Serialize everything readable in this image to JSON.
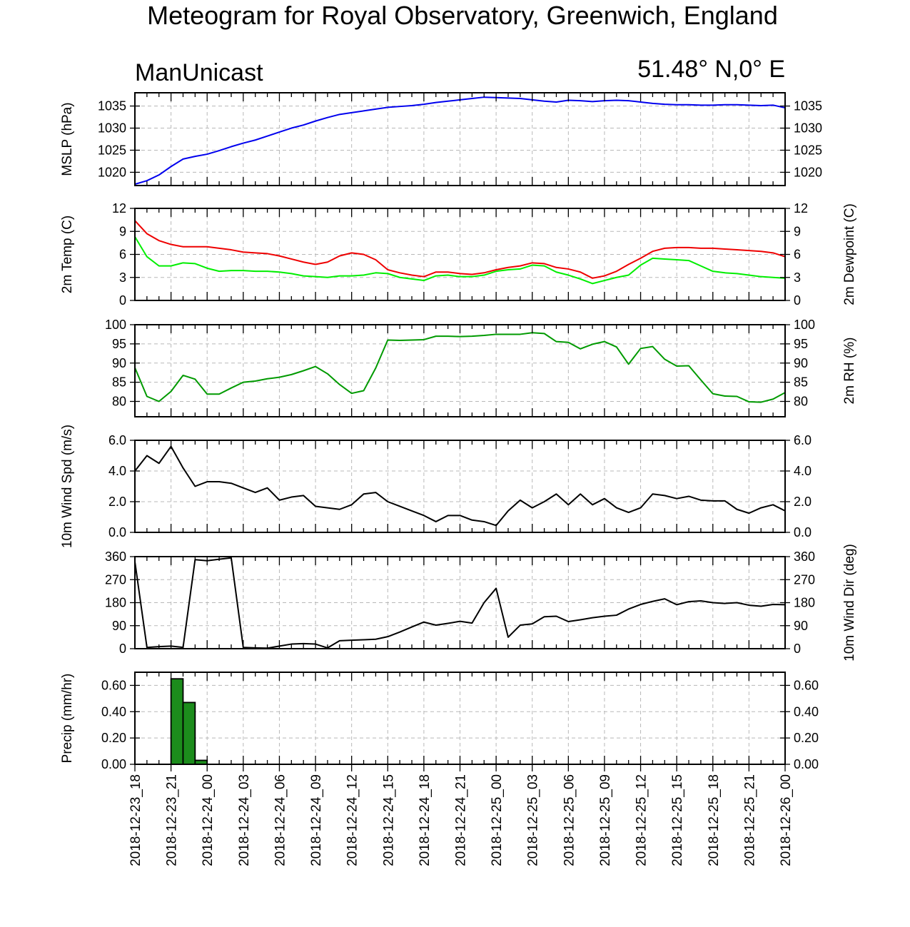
{
  "header": {
    "title": "Meteogram for Royal Observatory, Greenwich, England",
    "model": "ManUnicast",
    "location": "51.48° N,0° E"
  },
  "chart_data": {
    "type": "line",
    "time_axis": {
      "start": "2018-12-23_18",
      "end": "2018-12-26_00",
      "step_hours": 1,
      "tick_labels": [
        "2018-12-23_18",
        "2018-12-23_21",
        "2018-12-24_00",
        "2018-12-24_03",
        "2018-12-24_06",
        "2018-12-24_09",
        "2018-12-24_12",
        "2018-12-24_15",
        "2018-12-24_18",
        "2018-12-24_21",
        "2018-12-25_00",
        "2018-12-25_03",
        "2018-12-25_06",
        "2018-12-25_09",
        "2018-12-25_12",
        "2018-12-25_15",
        "2018-12-25_18",
        "2018-12-25_21",
        "2018-12-26_00"
      ]
    },
    "panels": [
      {
        "id": "mslp",
        "type": "line",
        "ylabel": "MSLP (hPa)",
        "ylabel_right": "",
        "ylim": [
          1017,
          1038
        ],
        "yticks": [
          1020,
          1025,
          1030,
          1035
        ],
        "right_ticklabels": true,
        "series": [
          {
            "color": "#0000ee",
            "values": [
              1017.3,
              1018.1,
              1019.4,
              1021.3,
              1023.0,
              1023.6,
              1024.1,
              1024.9,
              1025.8,
              1026.6,
              1027.3,
              1028.2,
              1029.1,
              1030.0,
              1030.7,
              1031.6,
              1032.4,
              1033.1,
              1033.5,
              1033.9,
              1034.3,
              1034.7,
              1034.9,
              1035.1,
              1035.4,
              1035.8,
              1036.1,
              1036.4,
              1036.7,
              1037.0,
              1036.9,
              1036.8,
              1036.7,
              1036.4,
              1036.1,
              1035.9,
              1036.3,
              1036.2,
              1036.0,
              1036.2,
              1036.3,
              1036.2,
              1035.9,
              1035.6,
              1035.4,
              1035.3,
              1035.3,
              1035.2,
              1035.2,
              1035.3,
              1035.3,
              1035.2,
              1035.1,
              1035.2,
              1034.6
            ]
          }
        ]
      },
      {
        "id": "temp",
        "type": "line",
        "ylabel": "2m Temp (C)",
        "ylabel_right": "2m Dewpoint (C)",
        "ylim": [
          0,
          12
        ],
        "yticks": [
          0,
          3,
          6,
          9,
          12
        ],
        "right_ticklabels": true,
        "series": [
          {
            "color": "#ee0000",
            "values": [
              10.4,
              8.7,
              7.8,
              7.3,
              7.0,
              7.0,
              7.0,
              6.8,
              6.6,
              6.3,
              6.2,
              6.1,
              5.8,
              5.4,
              5.0,
              4.7,
              5.0,
              5.8,
              6.2,
              6.0,
              5.3,
              4.0,
              3.6,
              3.3,
              3.1,
              3.7,
              3.7,
              3.5,
              3.4,
              3.6,
              4.0,
              4.3,
              4.5,
              4.9,
              4.8,
              4.3,
              4.1,
              3.7,
              2.9,
              3.2,
              3.8,
              4.7,
              5.5,
              6.4,
              6.8,
              6.9,
              6.9,
              6.8,
              6.8,
              6.7,
              6.6,
              6.5,
              6.4,
              6.2,
              5.7
            ]
          },
          {
            "color": "#00ee00",
            "values": [
              8.3,
              5.7,
              4.5,
              4.5,
              4.9,
              4.8,
              4.2,
              3.8,
              3.9,
              3.9,
              3.8,
              3.8,
              3.7,
              3.5,
              3.2,
              3.1,
              3.0,
              3.2,
              3.2,
              3.3,
              3.6,
              3.5,
              3.0,
              2.8,
              2.6,
              3.2,
              3.3,
              3.1,
              3.1,
              3.3,
              3.8,
              4.0,
              4.1,
              4.6,
              4.5,
              3.7,
              3.3,
              2.8,
              2.2,
              2.6,
              3.0,
              3.3,
              4.6,
              5.5,
              5.4,
              5.3,
              5.2,
              4.5,
              3.8,
              3.6,
              3.5,
              3.3,
              3.1,
              3.0,
              2.9
            ]
          }
        ]
      },
      {
        "id": "rh",
        "type": "line",
        "ylabel": "",
        "ylabel_right": "2m RH (%)",
        "ylim": [
          76,
          100
        ],
        "yticks": [
          80,
          85,
          90,
          95,
          100
        ],
        "right_ticklabels": true,
        "series": [
          {
            "color": "#009a00",
            "values": [
              88.8,
              81.3,
              80.0,
              82.6,
              86.8,
              85.8,
              81.9,
              81.9,
              83.5,
              85.0,
              85.3,
              85.9,
              86.3,
              87.0,
              88.0,
              89.1,
              87.2,
              84.4,
              82.1,
              82.8,
              88.7,
              96.0,
              95.9,
              96.0,
              96.1,
              97.0,
              97.0,
              96.9,
              97.0,
              97.2,
              97.5,
              97.5,
              97.5,
              97.9,
              97.7,
              95.6,
              95.4,
              93.7,
              94.9,
              95.6,
              94.2,
              89.7,
              93.8,
              94.3,
              91.0,
              89.2,
              89.3,
              85.6,
              82.0,
              81.4,
              81.3,
              79.9,
              79.8,
              80.6,
              82.3
            ]
          }
        ]
      },
      {
        "id": "wspd",
        "type": "line",
        "ylabel": "10m Wind Spd (m/s)",
        "ylabel_right": "",
        "ylim": [
          0,
          6
        ],
        "yticks": [
          0,
          2,
          4,
          6
        ],
        "tick_format": "fixed1",
        "right_ticklabels": true,
        "series": [
          {
            "color": "#000000",
            "values": [
              4.0,
              5.0,
              4.5,
              5.6,
              4.2,
              3.0,
              3.3,
              3.3,
              3.2,
              2.9,
              2.6,
              2.9,
              2.1,
              2.3,
              2.4,
              1.7,
              1.6,
              1.5,
              1.8,
              2.5,
              2.6,
              2.0,
              1.7,
              1.4,
              1.1,
              0.7,
              1.1,
              1.1,
              0.8,
              0.7,
              0.45,
              1.4,
              2.1,
              1.6,
              2.0,
              2.5,
              1.8,
              2.5,
              1.8,
              2.2,
              1.6,
              1.3,
              1.6,
              2.5,
              2.4,
              2.2,
              2.35,
              2.1,
              2.05,
              2.05,
              1.5,
              1.25,
              1.6,
              1.8,
              1.4
            ]
          }
        ]
      },
      {
        "id": "wdir",
        "type": "line",
        "ylabel": "",
        "ylabel_right": "10m Wind Dir (deg)",
        "ylim": [
          0,
          360
        ],
        "yticks": [
          0,
          90,
          180,
          270,
          360
        ],
        "right_ticklabels": true,
        "series": [
          {
            "color": "#000000",
            "values": [
              340,
              5,
              8,
              10,
              5,
              348,
              344,
              350,
              355,
              5,
              3,
              2,
              10,
              18,
              20,
              18,
              3,
              31,
              33,
              35,
              37,
              47,
              65,
              85,
              104,
              92,
              99,
              107,
              100,
              180,
              236,
              45,
              92,
              97,
              125,
              127,
              106,
              113,
              121,
              127,
              131,
              155,
              173,
              185,
              195,
              172,
              184,
              187,
              180,
              177,
              180,
              170,
              166,
              173,
              172
            ]
          }
        ]
      },
      {
        "id": "precip",
        "type": "bar",
        "ylabel": "Precip (mm/hr)",
        "ylabel_right": "",
        "ylim": [
          0,
          0.7
        ],
        "yticks": [
          0,
          0.2,
          0.4,
          0.6
        ],
        "tick_format": "fixed2",
        "right_ticklabels": true,
        "bar_color": "#1c8c1c",
        "values": [
          0,
          0,
          0,
          0.65,
          0.47,
          0.03,
          0,
          0,
          0,
          0,
          0,
          0,
          0,
          0,
          0,
          0,
          0,
          0,
          0,
          0,
          0,
          0,
          0,
          0,
          0,
          0,
          0,
          0,
          0,
          0.002,
          0.002,
          0.001,
          0,
          0,
          0,
          0,
          0,
          0,
          0,
          0,
          0,
          0,
          0,
          0,
          0,
          0,
          0,
          0,
          0,
          0,
          0,
          0,
          0,
          0
        ]
      }
    ]
  }
}
